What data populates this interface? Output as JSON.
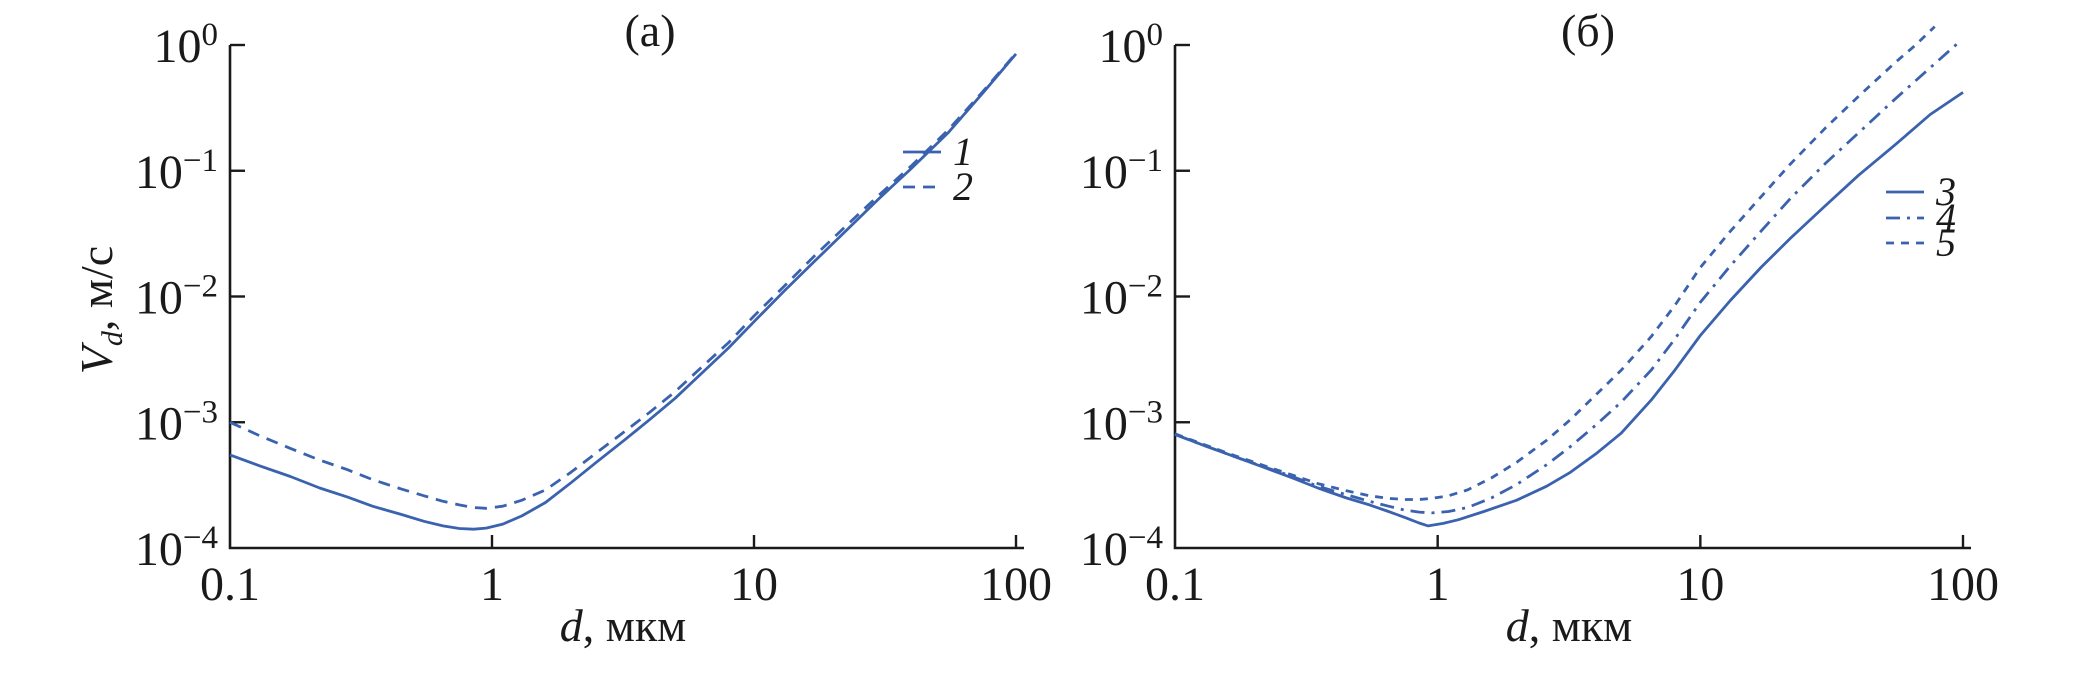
{
  "figure": {
    "bg": "#ffffff",
    "curve_color": "#3a62ae",
    "axis_color": "#1a1a1a"
  },
  "ylabel": {
    "var": "V",
    "sub": "d",
    "rest": ", м/с"
  },
  "chart_data": [
    {
      "type": "line",
      "panel": "a",
      "title": "(а)",
      "xlabel_var": "d",
      "xlabel_rest": ", мкм",
      "xlim": [
        0.1,
        100
      ],
      "ylim": [
        0.0001,
        1
      ],
      "x_scale": "log",
      "y_scale": "log",
      "grid": false,
      "x_tick_labels": [
        "0.1",
        "1",
        "10",
        "100"
      ],
      "y_tick_base": "10",
      "y_tick_exponents": [
        "0",
        "−1",
        "−2",
        "−3",
        "−4"
      ],
      "legend_position": "inside-right-upper",
      "series": [
        {
          "name": "1",
          "style": "solid",
          "points": [
            [
              0.1,
              0.00055
            ],
            [
              0.13,
              0.00045
            ],
            [
              0.17,
              0.00037
            ],
            [
              0.22,
              0.0003
            ],
            [
              0.28,
              0.000255
            ],
            [
              0.35,
              0.000215
            ],
            [
              0.45,
              0.000185
            ],
            [
              0.55,
              0.000163
            ],
            [
              0.65,
              0.00015
            ],
            [
              0.75,
              0.000143
            ],
            [
              0.85,
              0.000141
            ],
            [
              0.95,
              0.000144
            ],
            [
              1.1,
              0.000155
            ],
            [
              1.3,
              0.00018
            ],
            [
              1.6,
              0.00023
            ],
            [
              2.0,
              0.00033
            ],
            [
              2.5,
              0.00048
            ],
            [
              3.2,
              0.00072
            ],
            [
              4.0,
              0.00105
            ],
            [
              5.0,
              0.00155
            ],
            [
              6.5,
              0.0026
            ],
            [
              8.0,
              0.0039
            ],
            [
              10,
              0.0063
            ],
            [
              13,
              0.011
            ],
            [
              17,
              0.019
            ],
            [
              22,
              0.032
            ],
            [
              30,
              0.06
            ],
            [
              40,
              0.105
            ],
            [
              55,
              0.2
            ],
            [
              75,
              0.42
            ],
            [
              100,
              0.85
            ]
          ]
        },
        {
          "name": "2",
          "style": "dashed",
          "points": [
            [
              0.1,
              0.001
            ],
            [
              0.13,
              0.00078
            ],
            [
              0.17,
              0.00062
            ],
            [
              0.22,
              0.0005
            ],
            [
              0.28,
              0.00042
            ],
            [
              0.35,
              0.00035
            ],
            [
              0.45,
              0.000295
            ],
            [
              0.55,
              0.00026
            ],
            [
              0.65,
              0.000235
            ],
            [
              0.75,
              0.00022
            ],
            [
              0.85,
              0.00021
            ],
            [
              0.95,
              0.000207
            ],
            [
              1.1,
              0.000215
            ],
            [
              1.3,
              0.00024
            ],
            [
              1.6,
              0.00029
            ],
            [
              2.0,
              0.0004
            ],
            [
              2.5,
              0.00057
            ],
            [
              3.2,
              0.00084
            ],
            [
              4.0,
              0.0012
            ],
            [
              5.0,
              0.00175
            ],
            [
              6.5,
              0.0029
            ],
            [
              8.0,
              0.0043
            ],
            [
              10,
              0.007
            ],
            [
              13,
              0.012
            ],
            [
              17,
              0.021
            ],
            [
              22,
              0.035
            ],
            [
              30,
              0.064
            ],
            [
              40,
              0.11
            ],
            [
              55,
              0.21
            ],
            [
              75,
              0.43
            ],
            [
              100,
              0.86
            ]
          ]
        }
      ]
    },
    {
      "type": "line",
      "panel": "b",
      "title": "(б)",
      "xlabel_var": "d",
      "xlabel_rest": ", мкм",
      "xlim": [
        0.1,
        100
      ],
      "ylim": [
        0.0001,
        1
      ],
      "x_scale": "log",
      "y_scale": "log",
      "grid": false,
      "x_tick_labels": [
        "0.1",
        "1",
        "10",
        "100"
      ],
      "y_tick_base": "10",
      "y_tick_exponents": [
        "0",
        "−1",
        "−2",
        "−3",
        "−4"
      ],
      "legend_position": "inside-right-upper",
      "series": [
        {
          "name": "3",
          "style": "solid",
          "points": [
            [
              0.1,
              0.0008
            ],
            [
              0.13,
              0.00065
            ],
            [
              0.17,
              0.00053
            ],
            [
              0.22,
              0.000435
            ],
            [
              0.28,
              0.00036
            ],
            [
              0.35,
              0.0003
            ],
            [
              0.45,
              0.00025
            ],
            [
              0.55,
              0.00022
            ],
            [
              0.65,
              0.000195
            ],
            [
              0.75,
              0.000175
            ],
            [
              0.85,
              0.000158
            ],
            [
              0.92,
              0.00015
            ],
            [
              1.05,
              0.000157
            ],
            [
              1.2,
              0.000168
            ],
            [
              1.5,
              0.000195
            ],
            [
              2.0,
              0.00024
            ],
            [
              2.6,
              0.00031
            ],
            [
              3.2,
              0.0004
            ],
            [
              4.0,
              0.00056
            ],
            [
              5.0,
              0.00082
            ],
            [
              6.5,
              0.0015
            ],
            [
              8.0,
              0.0026
            ],
            [
              10,
              0.0049
            ],
            [
              13,
              0.0093
            ],
            [
              17,
              0.017
            ],
            [
              22,
              0.029
            ],
            [
              30,
              0.053
            ],
            [
              40,
              0.092
            ],
            [
              55,
              0.16
            ],
            [
              75,
              0.28
            ],
            [
              100,
              0.42
            ]
          ]
        },
        {
          "name": "4",
          "style": "dashdot",
          "points": [
            [
              0.1,
              0.0008
            ],
            [
              0.13,
              0.00065
            ],
            [
              0.17,
              0.00053
            ],
            [
              0.22,
              0.00044
            ],
            [
              0.28,
              0.00037
            ],
            [
              0.35,
              0.00031
            ],
            [
              0.45,
              0.000265
            ],
            [
              0.55,
              0.000235
            ],
            [
              0.65,
              0.000215
            ],
            [
              0.75,
              0.0002
            ],
            [
              0.85,
              0.000193
            ],
            [
              0.95,
              0.00019
            ],
            [
              1.1,
              0.000195
            ],
            [
              1.3,
              0.00021
            ],
            [
              1.6,
              0.00025
            ],
            [
              2.0,
              0.00032
            ],
            [
              2.6,
              0.00046
            ],
            [
              3.2,
              0.00064
            ],
            [
              4.0,
              0.00095
            ],
            [
              5.0,
              0.00145
            ],
            [
              6.5,
              0.0026
            ],
            [
              8.0,
              0.0046
            ],
            [
              10,
              0.009
            ],
            [
              13,
              0.0175
            ],
            [
              17,
              0.033
            ],
            [
              22,
              0.06
            ],
            [
              30,
              0.115
            ],
            [
              40,
              0.2
            ],
            [
              55,
              0.37
            ],
            [
              75,
              0.66
            ],
            [
              95,
              1.02
            ]
          ]
        },
        {
          "name": "5",
          "style": "dashed",
          "points": [
            [
              0.1,
              0.00081
            ],
            [
              0.13,
              0.00066
            ],
            [
              0.17,
              0.00054
            ],
            [
              0.22,
              0.00045
            ],
            [
              0.28,
              0.00038
            ],
            [
              0.35,
              0.000325
            ],
            [
              0.45,
              0.000285
            ],
            [
              0.55,
              0.00026
            ],
            [
              0.65,
              0.000248
            ],
            [
              0.75,
              0.000243
            ],
            [
              0.85,
              0.000243
            ],
            [
              0.95,
              0.000248
            ],
            [
              1.1,
              0.00026
            ],
            [
              1.3,
              0.00029
            ],
            [
              1.6,
              0.00036
            ],
            [
              2.0,
              0.00048
            ],
            [
              2.6,
              0.00072
            ],
            [
              3.2,
              0.00105
            ],
            [
              4.0,
              0.00165
            ],
            [
              5.0,
              0.0026
            ],
            [
              6.5,
              0.0048
            ],
            [
              8.0,
              0.0085
            ],
            [
              10,
              0.017
            ],
            [
              13,
              0.033
            ],
            [
              17,
              0.062
            ],
            [
              22,
              0.113
            ],
            [
              30,
              0.22
            ],
            [
              40,
              0.39
            ],
            [
              55,
              0.72
            ],
            [
              66,
              1.0
            ],
            [
              78,
              1.4
            ]
          ]
        }
      ]
    }
  ]
}
